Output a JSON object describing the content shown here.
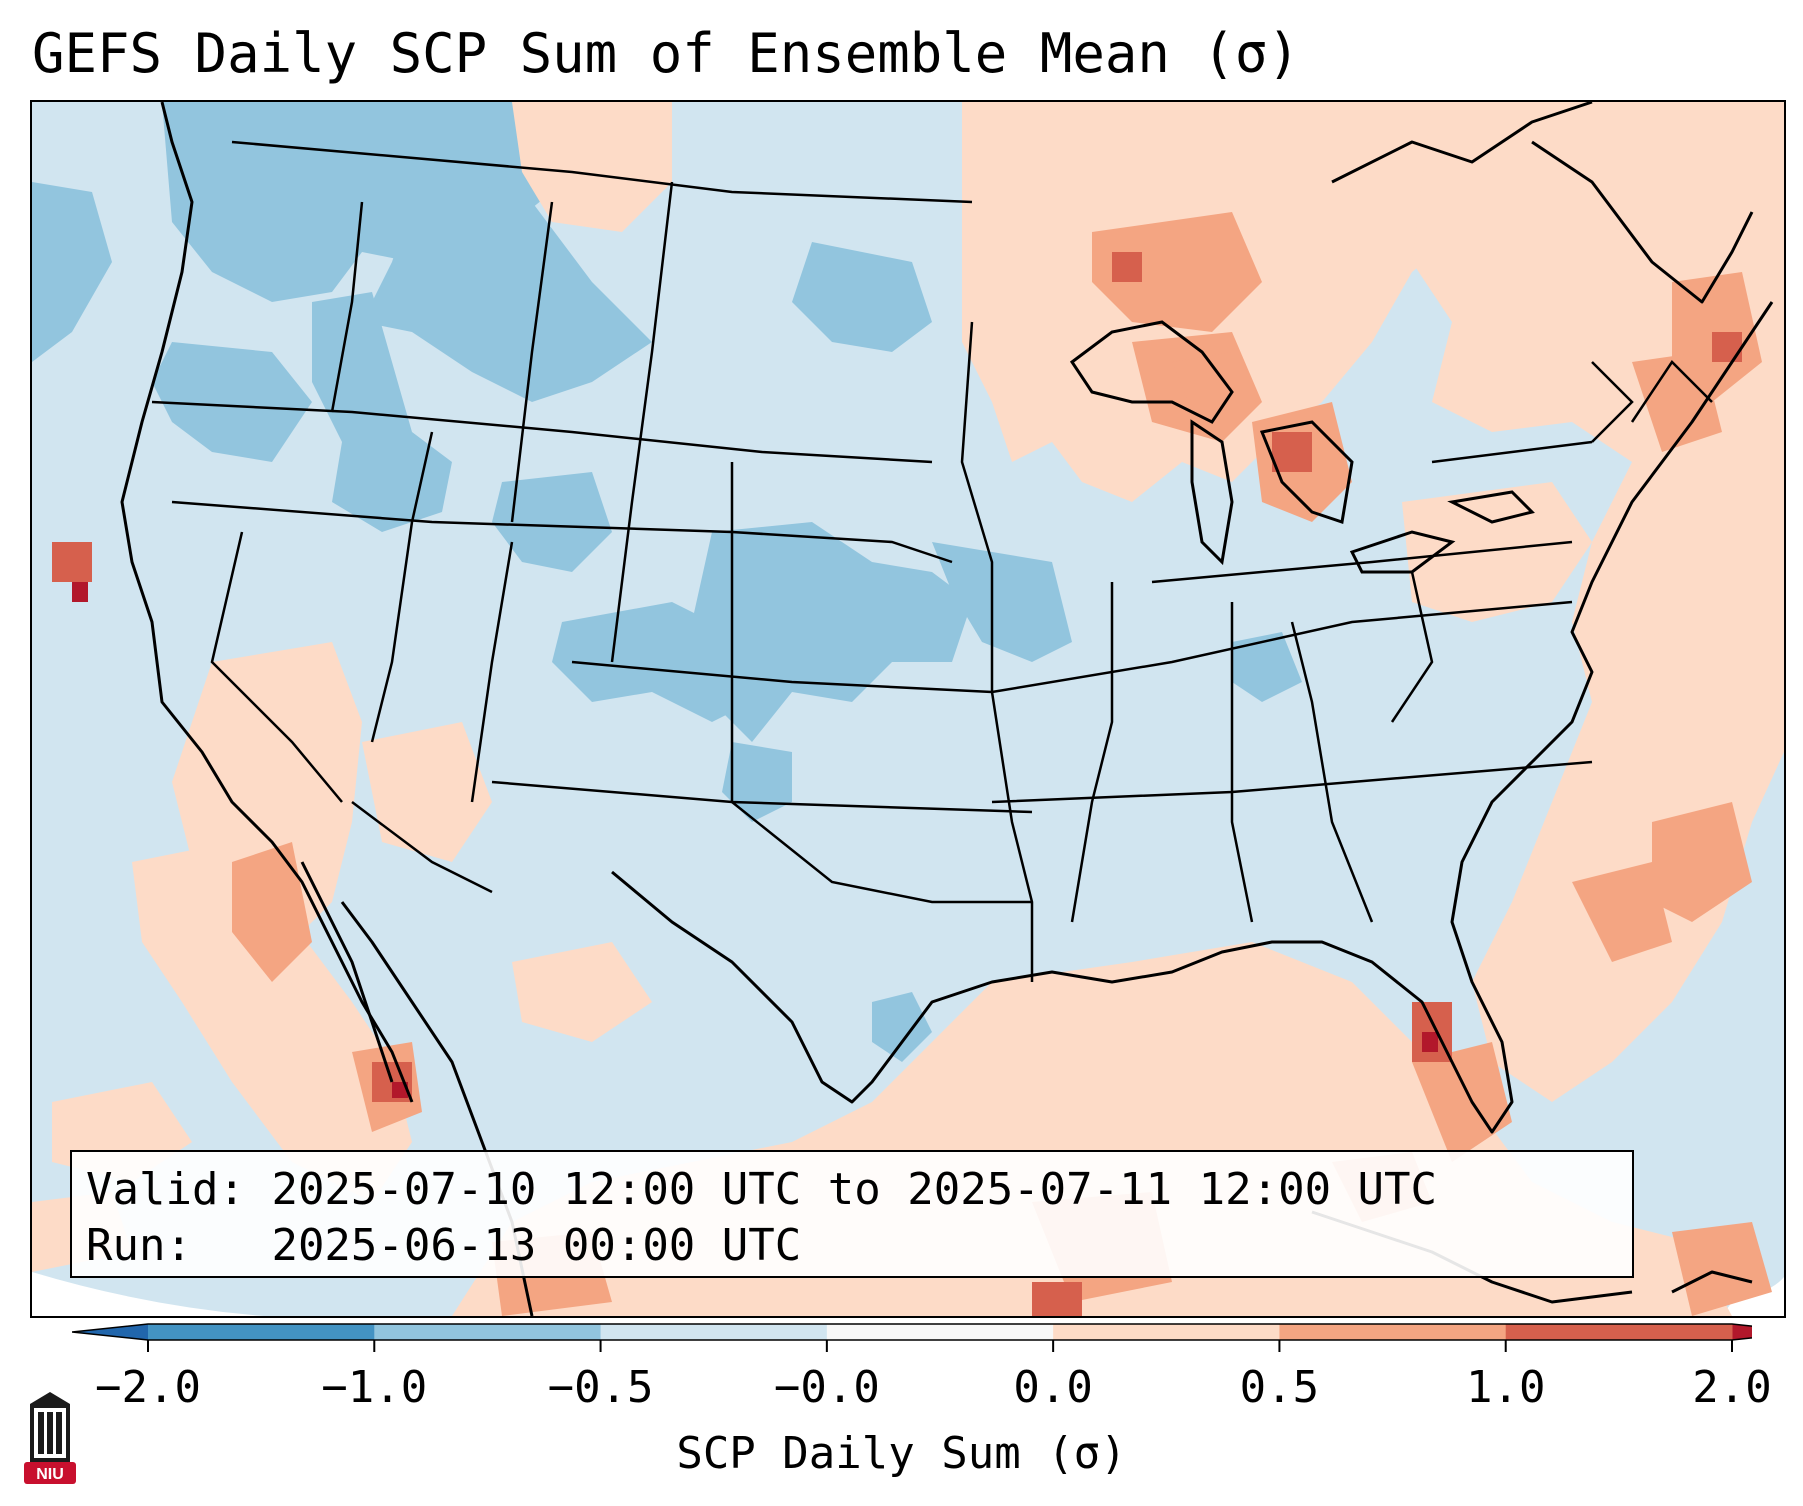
{
  "title": "GEFS Daily SCP Sum of Ensemble Mean (σ)",
  "info": {
    "valid_label": "Valid:",
    "valid_value": "2025-07-10 12:00 UTC to 2025-07-11 12:00 UTC",
    "run_label": "Run:",
    "run_value": "2025-06-13 00:00 UTC"
  },
  "colorbar": {
    "label": "SCP Daily Sum (σ)",
    "ticks": [
      "−2.0",
      "−1.0",
      "−0.5",
      "−0.0",
      "0.0",
      "0.5",
      "1.0",
      "2.0"
    ],
    "colors": [
      "#4393c3",
      "#92c5de",
      "#d1e5f0",
      "#f7f7f7",
      "#fddbc7",
      "#f4a582",
      "#d6604d"
    ],
    "extend_low_color": "#2166ac",
    "extend_high_color": "#b2182b"
  },
  "logo": {
    "text": "NIU"
  },
  "map": {
    "projection": "Lambert conformal, CONUS",
    "background_color": "#d1e5f0",
    "anomaly_regions": [
      {
        "name": "Northern Rockies / Pacific Northwest",
        "category": "-1.0 to -0.5",
        "color": "#92c5de"
      },
      {
        "name": "Central Plains",
        "category": "-1.0 to -0.5",
        "color": "#92c5de"
      },
      {
        "name": "Upper Midwest / Great Lakes",
        "category": "0.0 to 0.5 / 0.5 to 1.0",
        "color": "#fddbc7"
      },
      {
        "name": "Northeast / Atlantic",
        "category": "0.0 to 0.5 / 0.5 to 1.0",
        "color": "#fddbc7"
      },
      {
        "name": "Gulf of Mexico / Florida",
        "category": "0.0 to 0.5 / 0.5 to 1.0",
        "color": "#fddbc7"
      },
      {
        "name": "Gulf of California / Baja",
        "category": "0.0 to 0.5 / 1.0 to 2.0",
        "color": "#fddbc7"
      }
    ]
  }
}
